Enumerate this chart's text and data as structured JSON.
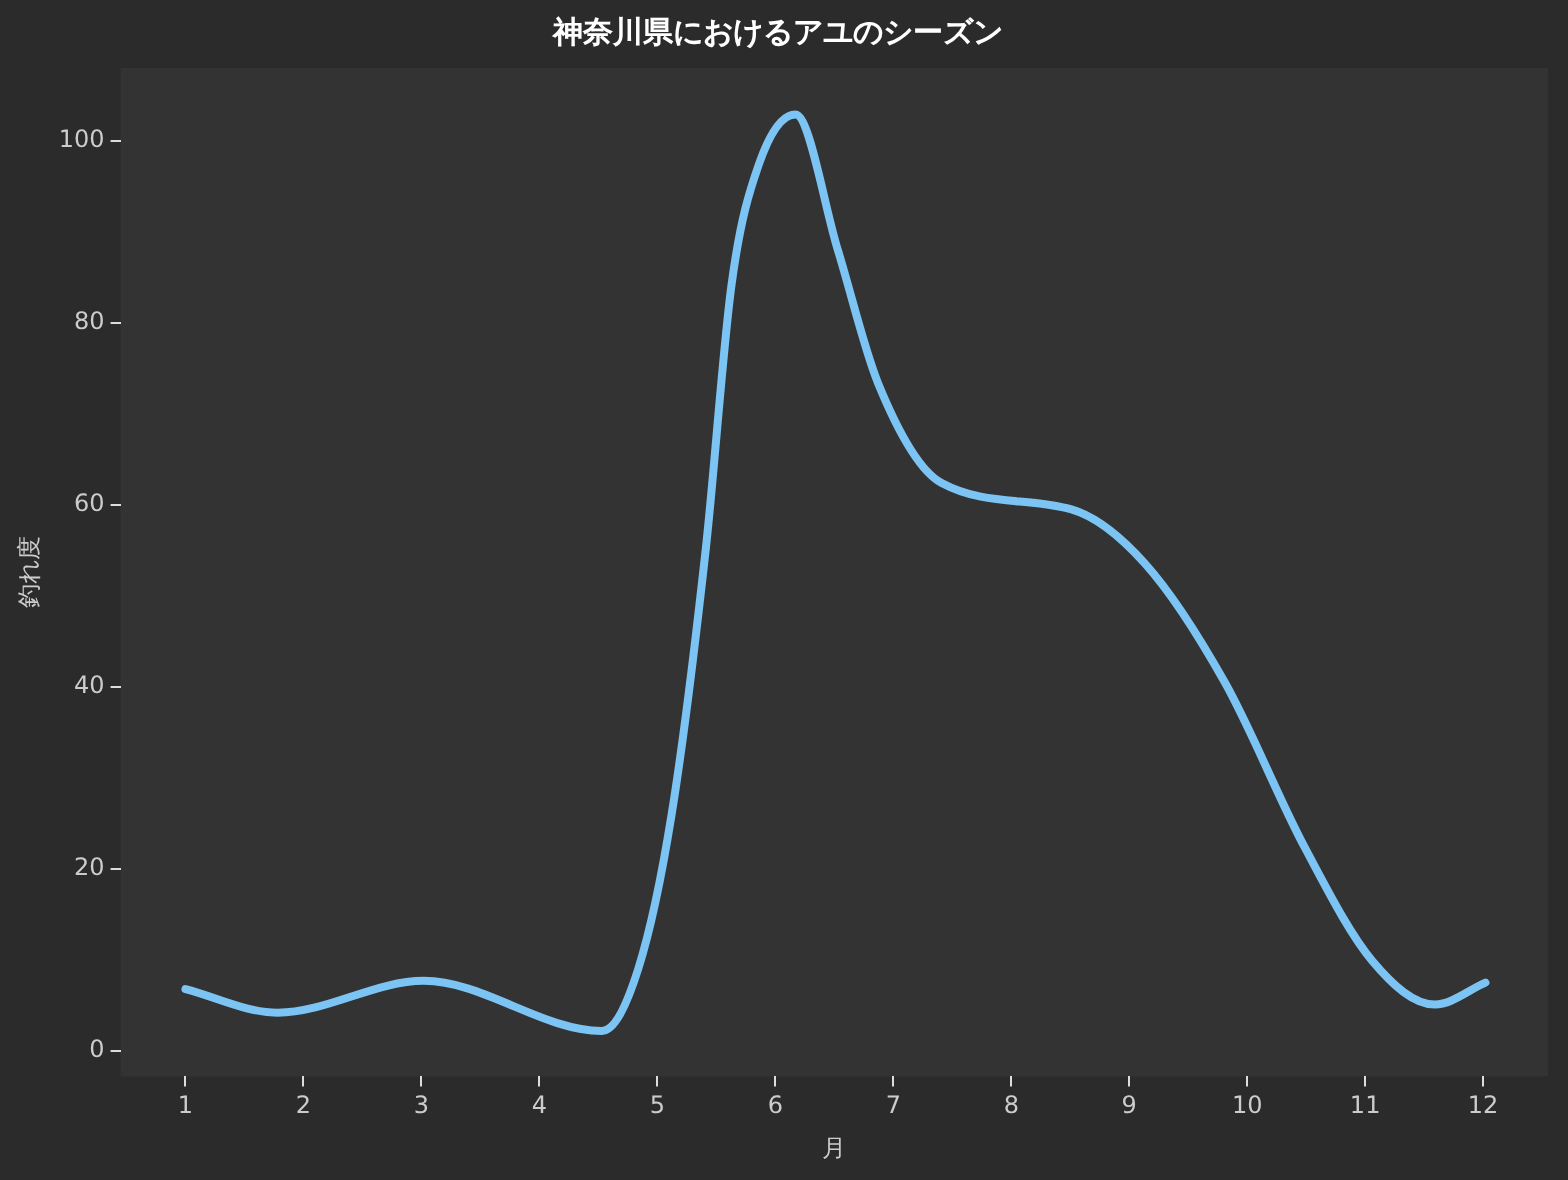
{
  "chart_data": {
    "type": "line",
    "title": "神奈川県におけるアユのシーズン",
    "xlabel": "月",
    "ylabel": "釣れ度",
    "series": [
      {
        "color": "#7cc4f4",
        "x": [
          1,
          1.78,
          3.02,
          4.53,
          4.84,
          5.12,
          5.41,
          5.63,
          5.86,
          6.17,
          6.53,
          6.87,
          7.41,
          8.51,
          9.13,
          9.81,
          10.49,
          11.06,
          11.59,
          12.02
        ],
        "values": [
          6.8,
          4.2,
          7.7,
          2.2,
          9.1,
          25.9,
          55.1,
          84.3,
          97.4,
          102.9,
          88.0,
          73.4,
          62.4,
          59.5,
          53.6,
          40.5,
          22.3,
          9.9,
          5.1,
          7.5
        ]
      }
    ],
    "xlim": [
      0.45,
      12.55
    ],
    "xticks": [
      1,
      2,
      3,
      4,
      5,
      6,
      7,
      8,
      9,
      10,
      11,
      12
    ],
    "ylim": [
      -2.8,
      108
    ],
    "yticks": [
      0,
      20,
      40,
      60,
      80,
      100
    ],
    "grid": false,
    "legend": false,
    "marker": "none",
    "line_style": "solid"
  }
}
